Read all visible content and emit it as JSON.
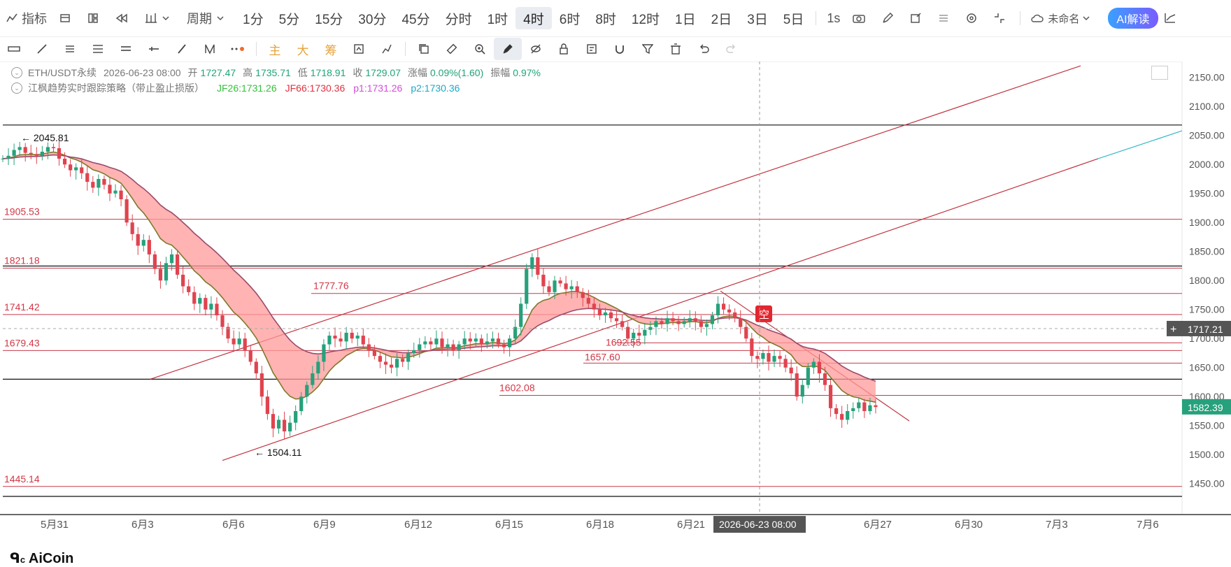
{
  "toolbar": {
    "indicator": "指标",
    "period": "周期",
    "timeframes": [
      "1分",
      "5分",
      "15分",
      "30分",
      "45分",
      "分时",
      "1时",
      "4时",
      "6时",
      "8时",
      "12时",
      "1日",
      "2日",
      "3日",
      "5日"
    ],
    "active_timeframe": "4时",
    "interval_1s": "1s",
    "unnamed": "未命名",
    "ai": "AI解读"
  },
  "draw_tools": {
    "main": "主",
    "big": "大",
    "chip": "筹"
  },
  "legend": {
    "symbol": "ETH/USDT永续",
    "datetime": "2026-06-23 08:00",
    "open_label": "开",
    "open": "1727.47",
    "high_label": "高",
    "high": "1735.71",
    "low_label": "低",
    "low": "1718.91",
    "close_label": "收",
    "close": "1729.07",
    "change_label": "涨幅",
    "change": "0.09%(1.60)",
    "amp_label": "振幅",
    "amp": "0.97%",
    "strategy": "江枫趋势实时跟踪策略（带止盈止损版）",
    "jf26": "JF26:1731.26",
    "jf66": "JF66:1730.36",
    "p1": "p1:1731.26",
    "p2": "p2:1730.36"
  },
  "chart_data": {
    "type": "candlestick",
    "symbol": "ETH/USDT永续",
    "interval": "4时",
    "y_range": [
      1428,
      2175
    ],
    "y_ticks": [
      2150,
      2100,
      2050,
      2000,
      1950,
      1900,
      1850,
      1800,
      1750,
      1700,
      1650,
      1600,
      1550,
      1500,
      1450
    ],
    "x_ticks": [
      "5月31",
      "6月3",
      "6月6",
      "6月9",
      "6月12",
      "6月15",
      "6月18",
      "6月21",
      "6月27",
      "6月30",
      "7月3",
      "7月6"
    ],
    "crosshair_date": "2026-06-23 08:00",
    "crosshair_price": "1717.21",
    "last_price": "1582.39",
    "price_labels": {
      "high_marker": "2045.81",
      "low_marker": "1504.11"
    },
    "horizontal_levels": [
      {
        "label": "1905.53",
        "value": 1905.53
      },
      {
        "label": "1821.18",
        "value": 1821.18
      },
      {
        "label": "1777.76",
        "value": 1777.76
      },
      {
        "label": "1741.42",
        "value": 1741.42
      },
      {
        "label": "1692.55",
        "value": 1692.55
      },
      {
        "label": "1679.43",
        "value": 1679.43
      },
      {
        "label": "1657.60",
        "value": 1657.6
      },
      {
        "label": "1602.08",
        "value": 1602.08
      },
      {
        "label": "1445.14",
        "value": 1445.14
      }
    ],
    "signal": "空",
    "close_series": [
      2010,
      2015,
      2025,
      2030,
      2020,
      2018,
      2015,
      2022,
      2030,
      2028,
      2010,
      2000,
      1990,
      1995,
      1985,
      1970,
      1960,
      1975,
      1965,
      1950,
      1955,
      1940,
      1900,
      1880,
      1860,
      1870,
      1845,
      1820,
      1800,
      1830,
      1845,
      1810,
      1790,
      1780,
      1760,
      1770,
      1750,
      1760,
      1740,
      1720,
      1700,
      1690,
      1700,
      1680,
      1660,
      1640,
      1600,
      1570,
      1545,
      1560,
      1540,
      1555,
      1575,
      1600,
      1620,
      1640,
      1660,
      1690,
      1705,
      1700,
      1695,
      1710,
      1700,
      1705,
      1690,
      1680,
      1670,
      1660,
      1655,
      1650,
      1665,
      1660,
      1675,
      1680,
      1690,
      1695,
      1690,
      1700,
      1685,
      1690,
      1680,
      1690,
      1700,
      1695,
      1700,
      1690,
      1695,
      1700,
      1690,
      1685,
      1700,
      1720,
      1760,
      1820,
      1840,
      1810,
      1790,
      1780,
      1800,
      1795,
      1785,
      1790,
      1780,
      1770,
      1760,
      1750,
      1740,
      1745,
      1735,
      1730,
      1720,
      1700,
      1710,
      1705,
      1715,
      1720,
      1730,
      1725,
      1735,
      1730,
      1725,
      1730,
      1735,
      1730,
      1720,
      1725,
      1740,
      1760,
      1750,
      1745,
      1735,
      1720,
      1700,
      1670,
      1665,
      1675,
      1660,
      1670,
      1665,
      1650,
      1640,
      1600,
      1620,
      1650,
      1660,
      1640,
      1620,
      1580,
      1570,
      1560,
      1575,
      1580,
      1590,
      1575,
      1585,
      1582
    ]
  }
}
